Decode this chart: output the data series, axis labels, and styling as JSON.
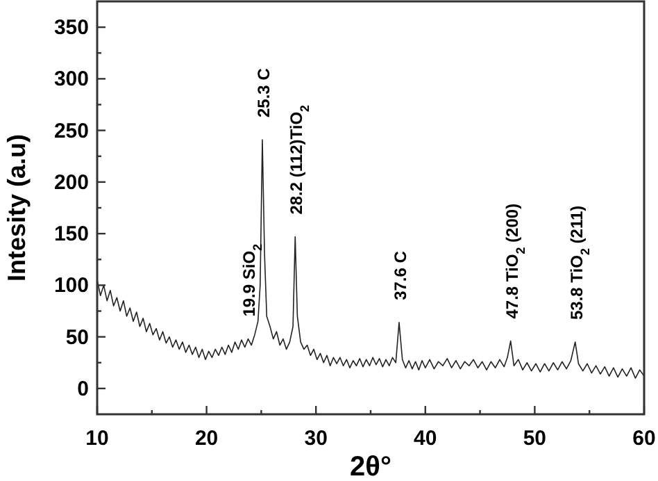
{
  "chart_data": {
    "type": "line",
    "xlabel": "2θ°",
    "ylabel": "Intesity (a.u)",
    "xlim": [
      10,
      60
    ],
    "ylim": [
      -25,
      375
    ],
    "xticks": [
      10,
      {
        "value": 15,
        "label": null
      },
      20,
      {
        "value": 25,
        "label": null
      },
      30,
      {
        "value": 35,
        "label": null
      },
      40,
      {
        "value": 45,
        "label": null
      },
      50,
      {
        "value": 55,
        "label": null
      },
      60
    ],
    "yticks": [
      0,
      {
        "value": 25,
        "label": null
      },
      50,
      {
        "value": 75,
        "label": null
      },
      100,
      {
        "value": 125,
        "label": null
      },
      150,
      {
        "value": 175,
        "label": null
      },
      200,
      {
        "value": 225,
        "label": null
      },
      250,
      {
        "value": 275,
        "label": null
      },
      300,
      {
        "value": 325,
        "label": null
      },
      350
    ],
    "grid": false,
    "marker": "none",
    "line_style": "solid",
    "series": [
      {
        "color": "#222222",
        "x": [
          10,
          10.3,
          10.6,
          10.9,
          11.2,
          11.5,
          11.8,
          12.1,
          12.4,
          12.7,
          13,
          13.3,
          13.6,
          13.9,
          14.2,
          14.5,
          14.8,
          15.1,
          15.4,
          15.7,
          16,
          16.3,
          16.6,
          16.9,
          17.2,
          17.5,
          17.8,
          18.1,
          18.4,
          18.7,
          19,
          19.3,
          19.6,
          19.9,
          20.2,
          20.5,
          20.8,
          21.1,
          21.4,
          21.7,
          22,
          22.3,
          22.6,
          22.9,
          23.2,
          23.5,
          23.8,
          24.1,
          24.4,
          24.7,
          24.9,
          25.1,
          25.3,
          25.5,
          25.8,
          26.1,
          26.4,
          26.7,
          27,
          27.3,
          27.6,
          27.9,
          28.1,
          28.3,
          28.6,
          28.9,
          29.2,
          29.5,
          29.8,
          30.1,
          30.4,
          30.7,
          31,
          31.3,
          31.6,
          31.9,
          32.2,
          32.5,
          32.8,
          33.1,
          33.4,
          33.7,
          34,
          34.3,
          34.6,
          34.9,
          35.2,
          35.5,
          35.8,
          36.1,
          36.4,
          36.7,
          37,
          37.3,
          37.6,
          37.9,
          38.2,
          38.5,
          38.8,
          39.1,
          39.4,
          39.7,
          40,
          40.4,
          40.8,
          41.2,
          41.6,
          42,
          42.4,
          42.8,
          43.2,
          43.6,
          44,
          44.4,
          44.8,
          45.2,
          45.6,
          46,
          46.4,
          46.8,
          47.2,
          47.5,
          47.8,
          48.1,
          48.5,
          48.9,
          49.3,
          49.7,
          50.1,
          50.5,
          50.9,
          51.3,
          51.7,
          52.1,
          52.5,
          52.9,
          53.3,
          53.7,
          54,
          54.4,
          54.8,
          55.2,
          55.6,
          56,
          56.4,
          56.8,
          57.2,
          57.6,
          58,
          58.4,
          58.8,
          59.2,
          59.6,
          60
        ],
        "values": [
          105,
          90,
          100,
          85,
          95,
          80,
          88,
          75,
          85,
          70,
          78,
          65,
          74,
          60,
          68,
          55,
          63,
          52,
          58,
          47,
          55,
          44,
          50,
          40,
          47,
          38,
          45,
          35,
          42,
          33,
          40,
          30,
          38,
          28,
          36,
          30,
          38,
          32,
          40,
          33,
          42,
          35,
          45,
          38,
          47,
          40,
          48,
          42,
          52,
          65,
          100,
          241,
          130,
          70,
          60,
          48,
          55,
          42,
          48,
          38,
          45,
          60,
          147,
          70,
          45,
          38,
          42,
          32,
          38,
          28,
          34,
          25,
          32,
          22,
          30,
          24,
          30,
          22,
          28,
          20,
          27,
          22,
          29,
          21,
          28,
          22,
          30,
          23,
          29,
          21,
          28,
          22,
          30,
          25,
          64,
          28,
          20,
          27,
          19,
          26,
          18,
          27,
          20,
          28,
          19,
          26,
          22,
          29,
          20,
          27,
          19,
          26,
          22,
          28,
          20,
          26,
          18,
          26,
          20,
          28,
          21,
          30,
          46,
          22,
          28,
          18,
          25,
          17,
          24,
          16,
          24,
          17,
          25,
          18,
          26,
          19,
          27,
          45,
          24,
          17,
          24,
          15,
          22,
          14,
          21,
          12,
          20,
          11,
          19,
          12,
          20,
          10,
          18,
          12
        ]
      }
    ],
    "annotations": [
      {
        "text": "19.9 SiO$_{2}$",
        "x": 23.8,
        "y": 48
      },
      {
        "text": "25.3 C",
        "x": 25.1,
        "y": 241
      },
      {
        "text": "28.2 (112)TiO$_{2}$",
        "x": 28.1,
        "y": 147
      },
      {
        "text": "37.6 C",
        "x": 37.6,
        "y": 64
      },
      {
        "text": "47.8 TiO$_{2}$ (200)",
        "x": 47.8,
        "y": 46
      },
      {
        "text": "53.8 TiO$_{2}$ (211)",
        "x": 53.7,
        "y": 45
      }
    ]
  }
}
